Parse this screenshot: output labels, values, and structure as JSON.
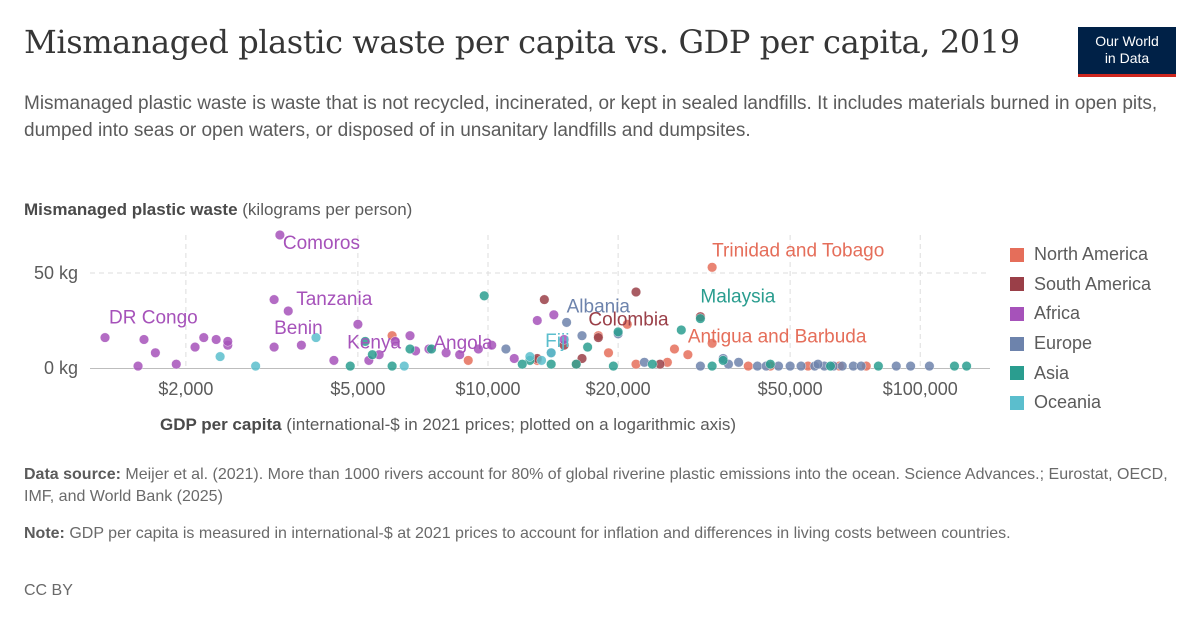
{
  "header": {
    "title": "Mismanaged plastic waste per capita vs. GDP per capita, 2019",
    "subtitle": "Mismanaged plastic waste is waste that is not recycled, incinerated, or kept in sealed landfills. It includes materials burned in open pits, dumped into seas or open waters, or disposed of in unsanitary landfills and dumpsites.",
    "logo_line1": "Our World",
    "logo_line2": "in Data"
  },
  "axes": {
    "y_title_bold": "Mismanaged plastic waste",
    "y_title_rest": " (kilograms per person)",
    "x_title_bold": "GDP per capita",
    "x_title_rest": " (international-$ in 2021 prices; plotted on a logarithmic axis)"
  },
  "chart_data": {
    "type": "scatter",
    "title": "Mismanaged plastic waste per capita vs. GDP per capita, 2019",
    "xlabel": "GDP per capita (international-$ in 2021 prices; plotted on a logarithmic axis)",
    "ylabel": "Mismanaged plastic waste (kilograms per person)",
    "x_scale": "log",
    "xlim": [
      1200,
      145000
    ],
    "ylim": [
      0,
      70
    ],
    "x_ticks": [
      {
        "value": 2000,
        "label": "$2,000"
      },
      {
        "value": 5000,
        "label": "$5,000"
      },
      {
        "value": 10000,
        "label": "$10,000"
      },
      {
        "value": 20000,
        "label": "$20,000"
      },
      {
        "value": 50000,
        "label": "$50,000"
      },
      {
        "value": 100000,
        "label": "$100,000"
      }
    ],
    "y_ticks": [
      {
        "value": 0,
        "label": "0 kg"
      },
      {
        "value": 50,
        "label": "50 kg"
      }
    ],
    "grid": true,
    "legend_position": "right",
    "series": [
      {
        "name": "North America",
        "color": "#e56e5a",
        "points": [
          [
            33000,
            53
          ],
          [
            29000,
            7
          ],
          [
            21000,
            23
          ],
          [
            33000,
            13
          ],
          [
            18000,
            17
          ],
          [
            27000,
            10
          ],
          [
            16000,
            2
          ],
          [
            22000,
            2
          ],
          [
            40000,
            1
          ],
          [
            45000,
            1
          ],
          [
            55000,
            1
          ],
          [
            65000,
            1
          ],
          [
            75000,
            1
          ],
          [
            6000,
            17
          ],
          [
            9000,
            4
          ],
          [
            13000,
            4
          ],
          [
            26000,
            3
          ],
          [
            19000,
            8
          ]
        ]
      },
      {
        "name": "South America",
        "color": "#9a3f48",
        "points": [
          [
            22000,
            40
          ],
          [
            13500,
            36
          ],
          [
            31000,
            27
          ],
          [
            18000,
            16
          ],
          [
            15000,
            12
          ],
          [
            14000,
            8
          ],
          [
            16500,
            5
          ],
          [
            25000,
            2
          ],
          [
            13000,
            5
          ]
        ]
      },
      {
        "name": "Africa",
        "color": "#a652ba",
        "points": [
          [
            1300,
            16
          ],
          [
            3300,
            70
          ],
          [
            3200,
            36
          ],
          [
            3450,
            30
          ],
          [
            5000,
            23
          ],
          [
            1600,
            15
          ],
          [
            2200,
            16
          ],
          [
            2350,
            15
          ],
          [
            2500,
            12
          ],
          [
            1700,
            8
          ],
          [
            1900,
            2
          ],
          [
            1550,
            1
          ],
          [
            3200,
            11
          ],
          [
            3700,
            12
          ],
          [
            4400,
            4
          ],
          [
            5600,
            7
          ],
          [
            6100,
            14
          ],
          [
            6800,
            9
          ],
          [
            8000,
            8
          ],
          [
            8600,
            7
          ],
          [
            9500,
            10
          ],
          [
            10200,
            12
          ],
          [
            13000,
            25
          ],
          [
            14200,
            28
          ],
          [
            2500,
            14
          ],
          [
            2100,
            11
          ],
          [
            6600,
            17
          ],
          [
            7300,
            10
          ],
          [
            5300,
            4
          ],
          [
            15000,
            15
          ],
          [
            11500,
            5
          ]
        ]
      },
      {
        "name": "Europe",
        "color": "#6d83ac",
        "points": [
          [
            15200,
            24
          ],
          [
            16500,
            17
          ],
          [
            20000,
            18
          ],
          [
            14000,
            8
          ],
          [
            11000,
            10
          ],
          [
            23000,
            3
          ],
          [
            35000,
            5
          ],
          [
            38000,
            3
          ],
          [
            42000,
            1
          ],
          [
            47000,
            1
          ],
          [
            50000,
            1
          ],
          [
            53000,
            1
          ],
          [
            57000,
            1
          ],
          [
            60000,
            1
          ],
          [
            63000,
            1
          ],
          [
            66000,
            1
          ],
          [
            70000,
            1
          ],
          [
            73000,
            1
          ],
          [
            88000,
            1
          ],
          [
            95000,
            1
          ],
          [
            105000,
            1
          ],
          [
            36000,
            2
          ],
          [
            44000,
            1
          ],
          [
            58000,
            2
          ],
          [
            31000,
            1
          ]
        ]
      },
      {
        "name": "Asia",
        "color": "#2a9d8f",
        "points": [
          [
            9800,
            38
          ],
          [
            31000,
            26
          ],
          [
            28000,
            20
          ],
          [
            20000,
            19
          ],
          [
            12500,
            4
          ],
          [
            7400,
            10
          ],
          [
            6000,
            1
          ],
          [
            4800,
            1
          ],
          [
            5200,
            14
          ],
          [
            5400,
            7
          ],
          [
            12000,
            2
          ],
          [
            14000,
            2
          ],
          [
            16000,
            2
          ],
          [
            24000,
            2
          ],
          [
            33000,
            1
          ],
          [
            35000,
            4
          ],
          [
            45000,
            2
          ],
          [
            62000,
            1
          ],
          [
            80000,
            1
          ],
          [
            120000,
            1
          ],
          [
            128000,
            1
          ],
          [
            6600,
            10
          ],
          [
            17000,
            11
          ],
          [
            19500,
            1
          ]
        ]
      },
      {
        "name": "Oceania",
        "color": "#5bbecd",
        "points": [
          [
            13300,
            4
          ],
          [
            2400,
            6
          ],
          [
            2900,
            1
          ],
          [
            4000,
            16
          ],
          [
            12500,
            6
          ],
          [
            6400,
            1
          ],
          [
            14000,
            8
          ]
        ]
      }
    ],
    "annotations": [
      {
        "text": "Comoros",
        "series": "Africa",
        "x": 3300,
        "y": 70
      },
      {
        "text": "Tanzania",
        "series": "Africa",
        "x": 3450,
        "y": 30
      },
      {
        "text": "DR Congo",
        "series": "Africa",
        "x": 1300,
        "y": 16
      },
      {
        "text": "Benin",
        "series": "Africa",
        "x": 3200,
        "y": 11
      },
      {
        "text": "Kenya",
        "series": "Africa",
        "x": 5600,
        "y": 7
      },
      {
        "text": "Angola",
        "series": "Africa",
        "x": 9500,
        "y": 10
      },
      {
        "text": "Fiji",
        "series": "Oceania",
        "x": 14000,
        "y": 8
      },
      {
        "text": "Albania",
        "series": "Europe",
        "x": 15200,
        "y": 24
      },
      {
        "text": "Colombia",
        "series": "South America",
        "x": 18000,
        "y": 16
      },
      {
        "text": "Malaysia",
        "series": "Asia",
        "x": 31000,
        "y": 26
      },
      {
        "text": "Trinidad and Tobago",
        "series": "North America",
        "x": 33000,
        "y": 53
      },
      {
        "text": "Antigua and Barbuda",
        "series": "North America",
        "x": 29000,
        "y": 7
      }
    ]
  },
  "footer": {
    "source_label": "Data source:",
    "source_text": " Meijer et al. (2021). More than 1000 rivers account for 80% of global riverine plastic emissions into the ocean. Science Advances.; Eurostat, OECD, IMF, and World Bank (2025)",
    "note_label": "Note:",
    "note_text": " GDP per capita is measured in international-$ at 2021 prices to account for inflation and differences in living costs between countries.",
    "license": "CC BY"
  }
}
